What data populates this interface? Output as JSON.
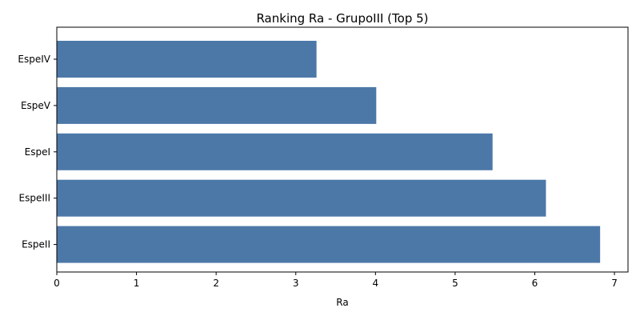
{
  "chart_data": {
    "type": "bar",
    "orientation": "horizontal",
    "title": "Ranking Ra - GrupoIII (Top 5)",
    "xlabel": "Ra",
    "ylabel": "",
    "categories": [
      "EspeIV",
      "EspeV",
      "EspeI",
      "EspeIII",
      "EspeII"
    ],
    "values": [
      3.26,
      4.01,
      5.47,
      6.14,
      6.82
    ],
    "xlim": [
      0,
      7.17
    ],
    "xticks": [
      "0",
      "1",
      "2",
      "3",
      "4",
      "5",
      "6",
      "7"
    ],
    "bar_color": "#4c78a8",
    "grid": false
  }
}
